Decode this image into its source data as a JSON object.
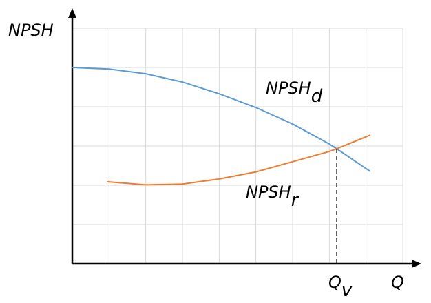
{
  "chart_data": {
    "type": "line",
    "y_label": "NPSH",
    "x_label": "Q",
    "xlim": [
      0,
      9
    ],
    "ylim": [
      0,
      6
    ],
    "xgrid": [
      1,
      2,
      3,
      4,
      5,
      6,
      7,
      8,
      9
    ],
    "ygrid": [
      1,
      2,
      3,
      4,
      5,
      6
    ],
    "grid": true,
    "series": [
      {
        "color": "#5b9bd5",
        "x": [
          0,
          1,
          2,
          3,
          4,
          5,
          6,
          7,
          7.2,
          8.12
        ],
        "values": [
          5.0,
          4.96,
          4.84,
          4.63,
          4.33,
          3.98,
          3.56,
          3.05,
          2.93,
          2.35
        ]
      },
      {
        "color": "#ed7d31",
        "x": [
          0.94,
          2,
          3,
          4,
          5,
          6,
          7,
          7.2,
          8.12
        ],
        "values": [
          2.09,
          2.01,
          2.03,
          2.16,
          2.34,
          2.6,
          2.86,
          2.93,
          3.28
        ]
      }
    ],
    "annotations": [
      {
        "text": "NPSH",
        "subscript": "d"
      },
      {
        "text": "NPSH",
        "subscript": "r"
      }
    ],
    "marker": {
      "x": 7.2,
      "y": 2.93,
      "text": "Q",
      "subscript": "v"
    }
  }
}
